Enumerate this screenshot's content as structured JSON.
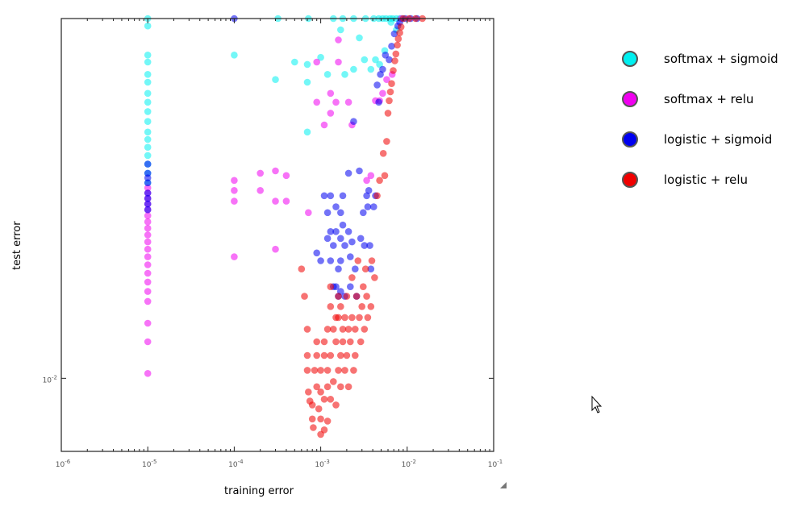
{
  "chart_data": {
    "type": "scatter",
    "xlabel": "training error",
    "ylabel": "test error",
    "xscale": "log",
    "yscale": "log",
    "xlim": [
      1e-06,
      0.1
    ],
    "ylim": [
      0.0064,
      0.09
    ],
    "x_ticks": [
      {
        "value": 1e-06,
        "base": "10",
        "exp": "-6"
      },
      {
        "value": 1e-05,
        "base": "10",
        "exp": "-5"
      },
      {
        "value": 0.0001,
        "base": "10",
        "exp": "-4"
      },
      {
        "value": 0.001,
        "base": "10",
        "exp": "-3"
      },
      {
        "value": 0.01,
        "base": "10",
        "exp": "-2"
      },
      {
        "value": 0.1,
        "base": "10",
        "exp": "-1"
      }
    ],
    "y_ticks": [
      {
        "value": 0.01,
        "base": "10",
        "exp": "-2"
      }
    ],
    "grid": false,
    "legend_position": "right",
    "series": [
      {
        "name": "softmax + sigmoid",
        "color": "#00f0f0",
        "points": [
          [
            1e-05,
            0.09
          ],
          [
            1e-05,
            0.086
          ],
          [
            1e-05,
            0.072
          ],
          [
            1e-05,
            0.069
          ],
          [
            1e-05,
            0.064
          ],
          [
            1e-05,
            0.061
          ],
          [
            1e-05,
            0.057
          ],
          [
            1e-05,
            0.054
          ],
          [
            1e-05,
            0.051
          ],
          [
            1e-05,
            0.048
          ],
          [
            1e-05,
            0.045
          ],
          [
            1e-05,
            0.043
          ],
          [
            1e-05,
            0.041
          ],
          [
            1e-05,
            0.039
          ],
          [
            1e-05,
            0.037
          ],
          [
            1e-05,
            0.035
          ],
          [
            1e-05,
            0.033
          ],
          [
            0.0001,
            0.072
          ],
          [
            0.0003,
            0.062
          ],
          [
            0.0005,
            0.069
          ],
          [
            0.0007,
            0.068
          ],
          [
            0.0007,
            0.061
          ],
          [
            0.0007,
            0.045
          ],
          [
            0.001,
            0.071
          ],
          [
            0.0012,
            0.064
          ],
          [
            0.0017,
            0.084
          ],
          [
            0.0019,
            0.064
          ],
          [
            0.0024,
            0.066
          ],
          [
            0.0028,
            0.08
          ],
          [
            0.0032,
            0.07
          ],
          [
            0.0038,
            0.066
          ],
          [
            0.0043,
            0.07
          ],
          [
            0.0048,
            0.068
          ],
          [
            0.0055,
            0.074
          ],
          [
            0.0065,
            0.088
          ],
          [
            0.0075,
            0.084
          ],
          [
            0.00032,
            0.09
          ],
          [
            0.00072,
            0.09
          ],
          [
            0.0014,
            0.09
          ],
          [
            0.0018,
            0.09
          ],
          [
            0.0024,
            0.09
          ],
          [
            0.0033,
            0.09
          ],
          [
            0.0041,
            0.09
          ],
          [
            0.0047,
            0.09
          ],
          [
            0.0052,
            0.09
          ],
          [
            0.0057,
            0.09
          ],
          [
            0.0063,
            0.09
          ],
          [
            0.0068,
            0.09
          ],
          [
            0.0075,
            0.09
          ],
          [
            0.0082,
            0.09
          ],
          [
            0.0088,
            0.09
          ]
        ]
      },
      {
        "name": "softmax + relu",
        "color": "#f000f0",
        "points": [
          [
            1e-05,
            0.032
          ],
          [
            1e-05,
            0.031
          ],
          [
            1e-05,
            0.03
          ],
          [
            1e-05,
            0.029
          ],
          [
            1e-05,
            0.028
          ],
          [
            1e-05,
            0.027
          ],
          [
            1e-05,
            0.026
          ],
          [
            1e-05,
            0.025
          ],
          [
            1e-05,
            0.024
          ],
          [
            1e-05,
            0.023
          ],
          [
            1e-05,
            0.022
          ],
          [
            1e-05,
            0.021
          ],
          [
            1e-05,
            0.02
          ],
          [
            1e-05,
            0.019
          ],
          [
            1e-05,
            0.018
          ],
          [
            1e-05,
            0.017
          ],
          [
            1e-05,
            0.016
          ],
          [
            1e-05,
            0.014
          ],
          [
            1e-05,
            0.0125
          ],
          [
            1e-05,
            0.0103
          ],
          [
            0.0001,
            0.0335
          ],
          [
            0.0001,
            0.0315
          ],
          [
            0.0001,
            0.0295
          ],
          [
            0.0001,
            0.021
          ],
          [
            0.0002,
            0.035
          ],
          [
            0.0002,
            0.0315
          ],
          [
            0.0003,
            0.0355
          ],
          [
            0.0003,
            0.0295
          ],
          [
            0.0003,
            0.022
          ],
          [
            0.0004,
            0.0345
          ],
          [
            0.0004,
            0.0295
          ],
          [
            0.00072,
            0.0275
          ],
          [
            0.0009,
            0.054
          ],
          [
            0.0009,
            0.069
          ],
          [
            0.0011,
            0.047
          ],
          [
            0.0013,
            0.0505
          ],
          [
            0.0013,
            0.057
          ],
          [
            0.0015,
            0.054
          ],
          [
            0.0016,
            0.069
          ],
          [
            0.0016,
            0.079
          ],
          [
            0.0021,
            0.054
          ],
          [
            0.0023,
            0.047
          ],
          [
            0.0034,
            0.0335
          ],
          [
            0.0038,
            0.0345
          ],
          [
            0.0043,
            0.0545
          ],
          [
            0.0048,
            0.0545
          ],
          [
            0.0052,
            0.057
          ],
          [
            0.0058,
            0.062
          ],
          [
            0.0067,
            0.064
          ],
          [
            0.0085,
            0.09
          ]
        ]
      },
      {
        "name": "logistic + sigmoid",
        "color": "#0000f0",
        "points": [
          [
            1e-05,
            0.037
          ],
          [
            1e-05,
            0.035
          ],
          [
            1e-05,
            0.034
          ],
          [
            1e-05,
            0.033
          ],
          [
            1e-05,
            0.031
          ],
          [
            1e-05,
            0.03
          ],
          [
            1e-05,
            0.029
          ],
          [
            1e-05,
            0.028
          ],
          [
            0.0001,
            0.09
          ],
          [
            0.0009,
            0.0215
          ],
          [
            0.001,
            0.0205
          ],
          [
            0.0011,
            0.0305
          ],
          [
            0.0012,
            0.0275
          ],
          [
            0.0012,
            0.0235
          ],
          [
            0.0013,
            0.0305
          ],
          [
            0.0013,
            0.0245
          ],
          [
            0.0013,
            0.0205
          ],
          [
            0.0014,
            0.0225
          ],
          [
            0.0014,
            0.0175
          ],
          [
            0.0015,
            0.0285
          ],
          [
            0.0015,
            0.0245
          ],
          [
            0.0015,
            0.0175
          ],
          [
            0.0016,
            0.0195
          ],
          [
            0.0016,
            0.0165
          ],
          [
            0.0017,
            0.0275
          ],
          [
            0.0017,
            0.0235
          ],
          [
            0.0017,
            0.0205
          ],
          [
            0.0017,
            0.017
          ],
          [
            0.0018,
            0.0305
          ],
          [
            0.0018,
            0.0255
          ],
          [
            0.0019,
            0.0225
          ],
          [
            0.0019,
            0.0165
          ],
          [
            0.0021,
            0.035
          ],
          [
            0.0021,
            0.0245
          ],
          [
            0.0022,
            0.021
          ],
          [
            0.0022,
            0.0175
          ],
          [
            0.0023,
            0.023
          ],
          [
            0.0024,
            0.048
          ],
          [
            0.0025,
            0.0195
          ],
          [
            0.0026,
            0.0165
          ],
          [
            0.0028,
            0.0355
          ],
          [
            0.0029,
            0.0235
          ],
          [
            0.0031,
            0.0275
          ],
          [
            0.0032,
            0.0225
          ],
          [
            0.0034,
            0.0305
          ],
          [
            0.0035,
            0.0285
          ],
          [
            0.0036,
            0.0315
          ],
          [
            0.0037,
            0.0225
          ],
          [
            0.0038,
            0.0195
          ],
          [
            0.0041,
            0.0285
          ],
          [
            0.0043,
            0.0305
          ],
          [
            0.0045,
            0.06
          ],
          [
            0.0047,
            0.054
          ],
          [
            0.0049,
            0.064
          ],
          [
            0.0052,
            0.066
          ],
          [
            0.0056,
            0.072
          ],
          [
            0.0062,
            0.07
          ],
          [
            0.0066,
            0.076
          ],
          [
            0.0071,
            0.082
          ],
          [
            0.0078,
            0.086
          ],
          [
            0.0082,
            0.088
          ],
          [
            0.0095,
            0.09
          ],
          [
            0.011,
            0.09
          ],
          [
            0.013,
            0.09
          ]
        ]
      },
      {
        "name": "logistic + relu",
        "color": "#f00000",
        "points": [
          [
            0.0006,
            0.0195
          ],
          [
            0.00065,
            0.0165
          ],
          [
            0.0007,
            0.0135
          ],
          [
            0.0007,
            0.0115
          ],
          [
            0.0007,
            0.0105
          ],
          [
            0.00072,
            0.0092
          ],
          [
            0.00075,
            0.0087
          ],
          [
            0.0008,
            0.0085
          ],
          [
            0.0008,
            0.0078
          ],
          [
            0.00082,
            0.0074
          ],
          [
            0.00085,
            0.0105
          ],
          [
            0.0009,
            0.0125
          ],
          [
            0.0009,
            0.0115
          ],
          [
            0.0009,
            0.0095
          ],
          [
            0.00095,
            0.0083
          ],
          [
            0.001,
            0.0071
          ],
          [
            0.001,
            0.0078
          ],
          [
            0.001,
            0.0092
          ],
          [
            0.001,
            0.0105
          ],
          [
            0.0011,
            0.0125
          ],
          [
            0.0011,
            0.0115
          ],
          [
            0.0011,
            0.0088
          ],
          [
            0.0011,
            0.0073
          ],
          [
            0.0012,
            0.0135
          ],
          [
            0.0012,
            0.0105
          ],
          [
            0.0012,
            0.0095
          ],
          [
            0.0012,
            0.0077
          ],
          [
            0.0013,
            0.0175
          ],
          [
            0.0013,
            0.0155
          ],
          [
            0.0013,
            0.0115
          ],
          [
            0.0013,
            0.0088
          ],
          [
            0.0014,
            0.0135
          ],
          [
            0.0014,
            0.0098
          ],
          [
            0.0015,
            0.0145
          ],
          [
            0.0015,
            0.0125
          ],
          [
            0.0015,
            0.0085
          ],
          [
            0.0016,
            0.0165
          ],
          [
            0.0016,
            0.0145
          ],
          [
            0.0016,
            0.0105
          ],
          [
            0.0017,
            0.0155
          ],
          [
            0.0017,
            0.0115
          ],
          [
            0.0017,
            0.0095
          ],
          [
            0.0018,
            0.0135
          ],
          [
            0.0018,
            0.0125
          ],
          [
            0.0019,
            0.0145
          ],
          [
            0.0019,
            0.0105
          ],
          [
            0.002,
            0.0165
          ],
          [
            0.002,
            0.0115
          ],
          [
            0.0021,
            0.0135
          ],
          [
            0.0021,
            0.0095
          ],
          [
            0.0022,
            0.0125
          ],
          [
            0.0023,
            0.0145
          ],
          [
            0.0023,
            0.0185
          ],
          [
            0.0024,
            0.0105
          ],
          [
            0.0025,
            0.0135
          ],
          [
            0.0025,
            0.0115
          ],
          [
            0.0026,
            0.0165
          ],
          [
            0.0027,
            0.0205
          ],
          [
            0.0028,
            0.0145
          ],
          [
            0.0029,
            0.0125
          ],
          [
            0.003,
            0.0155
          ],
          [
            0.0031,
            0.0175
          ],
          [
            0.0032,
            0.0135
          ],
          [
            0.0033,
            0.0195
          ],
          [
            0.0034,
            0.0165
          ],
          [
            0.0035,
            0.0145
          ],
          [
            0.0038,
            0.0155
          ],
          [
            0.0039,
            0.0205
          ],
          [
            0.0042,
            0.0185
          ],
          [
            0.0045,
            0.0305
          ],
          [
            0.0048,
            0.0335
          ],
          [
            0.0053,
            0.0395
          ],
          [
            0.0055,
            0.0345
          ],
          [
            0.0058,
            0.0425
          ],
          [
            0.006,
            0.0505
          ],
          [
            0.0062,
            0.0545
          ],
          [
            0.0064,
            0.0575
          ],
          [
            0.0066,
            0.0605
          ],
          [
            0.0069,
            0.0655
          ],
          [
            0.0072,
            0.0695
          ],
          [
            0.0074,
            0.0725
          ],
          [
            0.0077,
            0.0765
          ],
          [
            0.0079,
            0.0795
          ],
          [
            0.0082,
            0.0825
          ],
          [
            0.0085,
            0.0855
          ],
          [
            0.009,
            0.09
          ],
          [
            0.0105,
            0.09
          ],
          [
            0.0125,
            0.09
          ],
          [
            0.015,
            0.09
          ]
        ]
      }
    ]
  }
}
